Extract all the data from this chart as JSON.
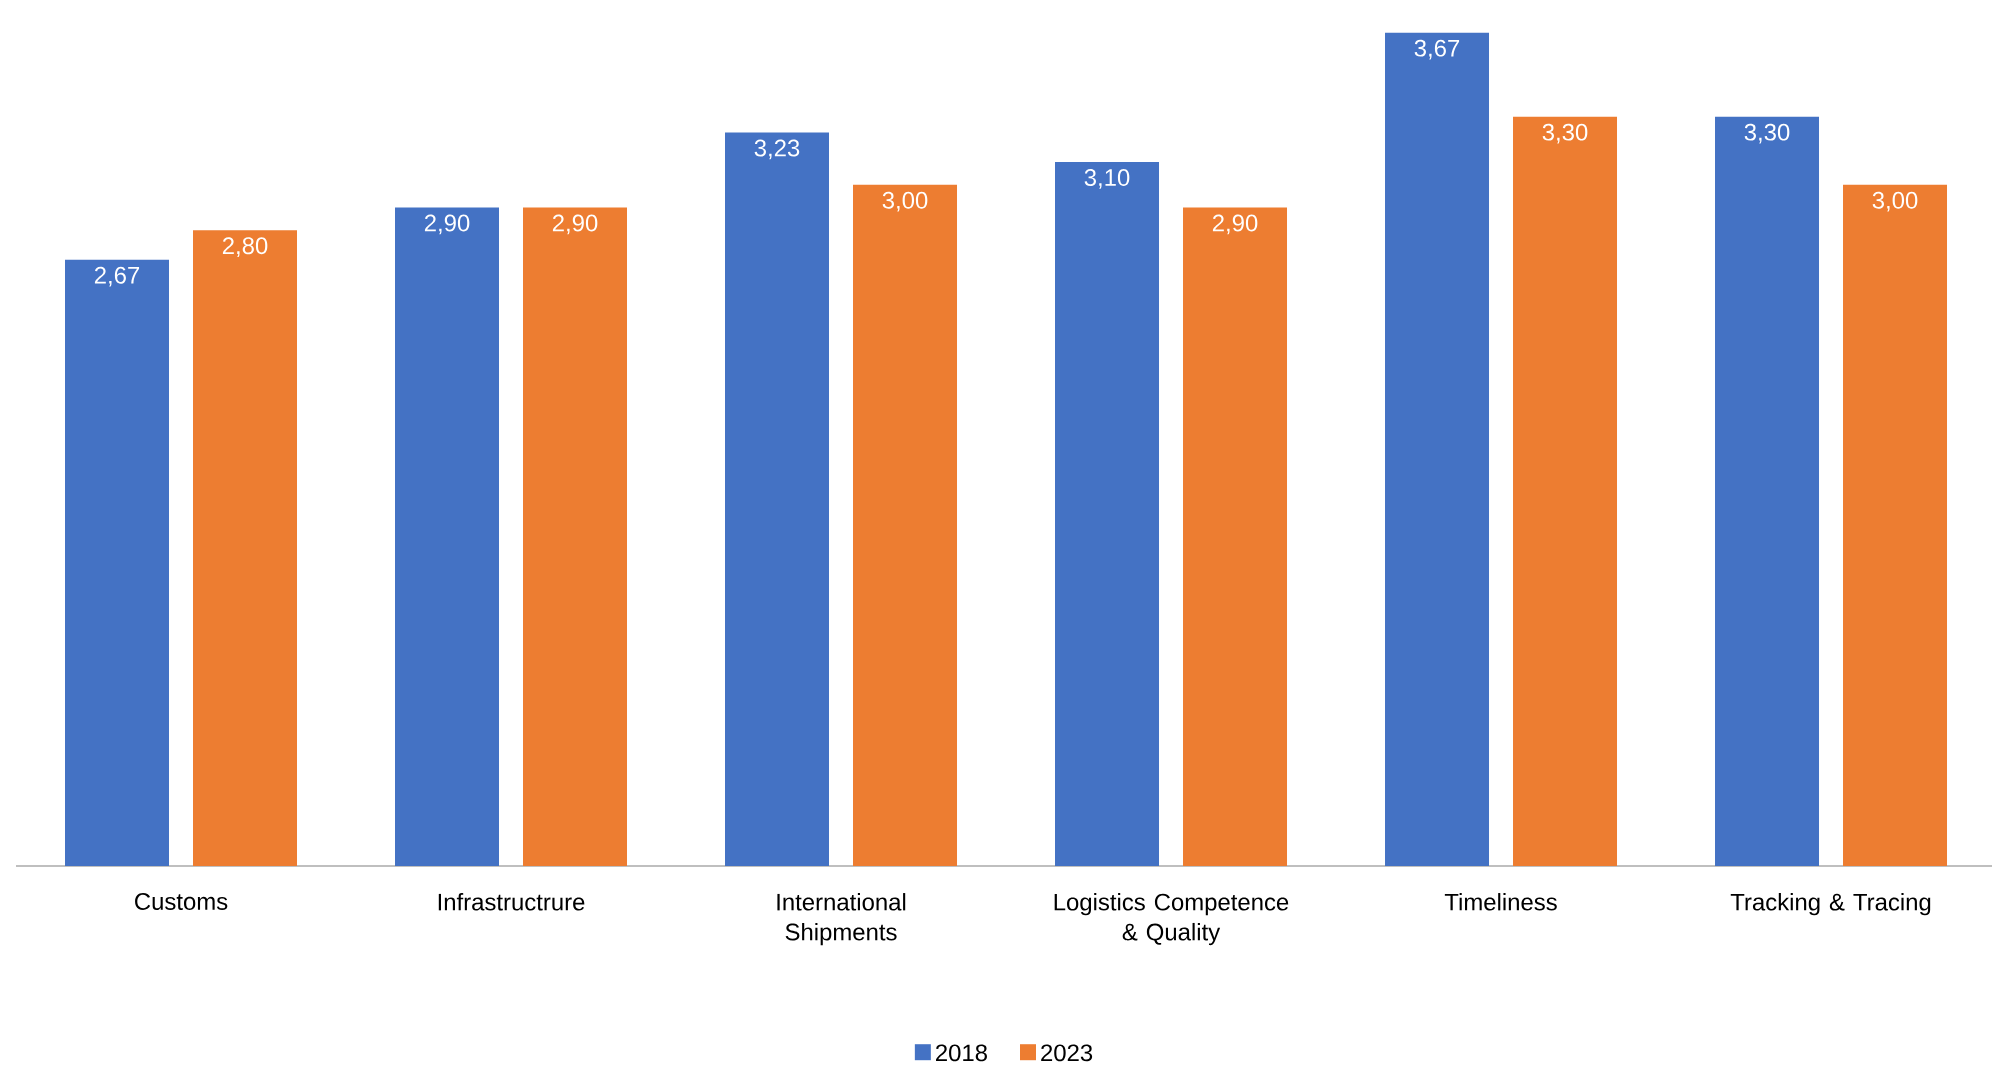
{
  "chart_data": {
    "type": "bar",
    "categories": [
      "Customs",
      "Infrastructrure",
      "International Shipments",
      "Logistics Competence & Quality",
      "Timeliness",
      "Tracking & Tracing"
    ],
    "series": [
      {
        "name": "2018",
        "color": "#4472c4",
        "values": [
          2.67,
          2.9,
          3.23,
          3.1,
          3.67,
          3.3
        ],
        "value_labels": [
          "2,67",
          "2,90",
          "3,23",
          "3,10",
          "3,67",
          "3,30"
        ]
      },
      {
        "name": "2023",
        "color": "#ed7d31",
        "values": [
          2.8,
          2.9,
          3.0,
          2.9,
          3.3,
          3.0
        ],
        "value_labels": [
          "2,80",
          "2,90",
          "3,00",
          "2,90",
          "3,30",
          "3,00"
        ]
      }
    ],
    "legend": "bottom",
    "grid": false
  }
}
